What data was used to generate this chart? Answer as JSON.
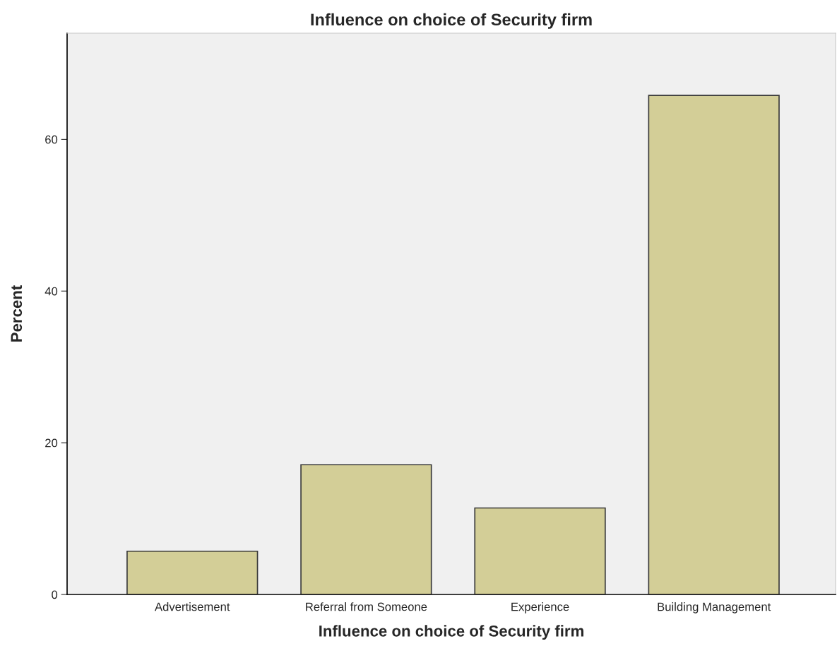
{
  "chart_data": {
    "type": "bar",
    "title": "Influence on choice of Security firm",
    "xlabel": "Influence on choice of Security firm",
    "ylabel": "Percent",
    "categories": [
      "Advertisement",
      "Referral from Someone",
      "Experience",
      "Building Management"
    ],
    "values": [
      5.7,
      17.1,
      11.4,
      65.8
    ],
    "color": "#d3ce97",
    "ylim": [
      0,
      74
    ],
    "yticks": [
      0,
      20,
      40,
      60
    ],
    "grid": false
  }
}
